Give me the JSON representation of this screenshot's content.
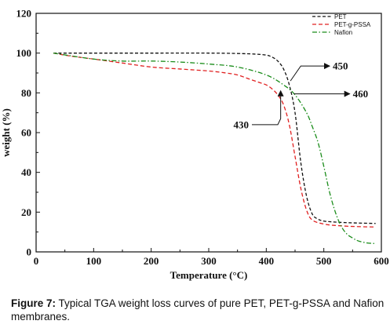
{
  "caption": {
    "label": "Figure 7:",
    "text": "Typical TGA weight loss curves of pure PET, PET-g-PSSA and Nafion membranes."
  },
  "chart_data": {
    "type": "line",
    "xlabel": "Temperature (°C)",
    "ylabel": "weight (%)",
    "xlim": [
      0,
      600
    ],
    "ylim": [
      0,
      120
    ],
    "xticks": [
      0,
      100,
      200,
      300,
      400,
      500,
      600
    ],
    "yticks": [
      0,
      20,
      40,
      60,
      80,
      100,
      120
    ],
    "grid": false,
    "legend_position": "top-right",
    "series": [
      {
        "name": "PET",
        "color": "#111111",
        "dash": "short-dash",
        "points": [
          [
            30,
            100
          ],
          [
            100,
            100
          ],
          [
            200,
            100
          ],
          [
            300,
            100
          ],
          [
            350,
            99.8
          ],
          [
            380,
            99.5
          ],
          [
            400,
            99
          ],
          [
            410,
            98
          ],
          [
            420,
            96
          ],
          [
            430,
            92
          ],
          [
            440,
            84
          ],
          [
            450,
            70
          ],
          [
            460,
            45
          ],
          [
            470,
            28
          ],
          [
            480,
            19
          ],
          [
            490,
            16.5
          ],
          [
            500,
            15.5
          ],
          [
            520,
            15
          ],
          [
            550,
            14.6
          ],
          [
            590,
            14.3
          ]
        ]
      },
      {
        "name": "PET-g-PSSA",
        "color": "#e02020",
        "dash": "dash",
        "points": [
          [
            30,
            100
          ],
          [
            60,
            98.5
          ],
          [
            100,
            97
          ],
          [
            150,
            95
          ],
          [
            200,
            93
          ],
          [
            250,
            92
          ],
          [
            300,
            91
          ],
          [
            330,
            90
          ],
          [
            350,
            89
          ],
          [
            370,
            87
          ],
          [
            390,
            85
          ],
          [
            400,
            84
          ],
          [
            410,
            82
          ],
          [
            420,
            79
          ],
          [
            430,
            74
          ],
          [
            440,
            64
          ],
          [
            450,
            48
          ],
          [
            460,
            32
          ],
          [
            470,
            21
          ],
          [
            480,
            16
          ],
          [
            500,
            14
          ],
          [
            520,
            13.3
          ],
          [
            550,
            12.8
          ],
          [
            590,
            12.5
          ]
        ]
      },
      {
        "name": "Nafion",
        "color": "#1a8c1a",
        "dash": "dash-dot",
        "points": [
          [
            30,
            100
          ],
          [
            100,
            97
          ],
          [
            150,
            96
          ],
          [
            200,
            96
          ],
          [
            250,
            95.5
          ],
          [
            300,
            94.5
          ],
          [
            350,
            93
          ],
          [
            400,
            89
          ],
          [
            430,
            84
          ],
          [
            450,
            79
          ],
          [
            470,
            70
          ],
          [
            480,
            63
          ],
          [
            490,
            55
          ],
          [
            500,
            43
          ],
          [
            510,
            30
          ],
          [
            520,
            20
          ],
          [
            530,
            13
          ],
          [
            540,
            9
          ],
          [
            550,
            7
          ],
          [
            560,
            5.5
          ],
          [
            575,
            4.5
          ],
          [
            590,
            4.2
          ]
        ]
      }
    ],
    "annotations": [
      {
        "text": "450",
        "at": [
          450,
          93
        ]
      },
      {
        "text": "460",
        "at": [
          460,
          80
        ]
      },
      {
        "text": "430",
        "at": [
          430,
          79
        ]
      }
    ]
  }
}
